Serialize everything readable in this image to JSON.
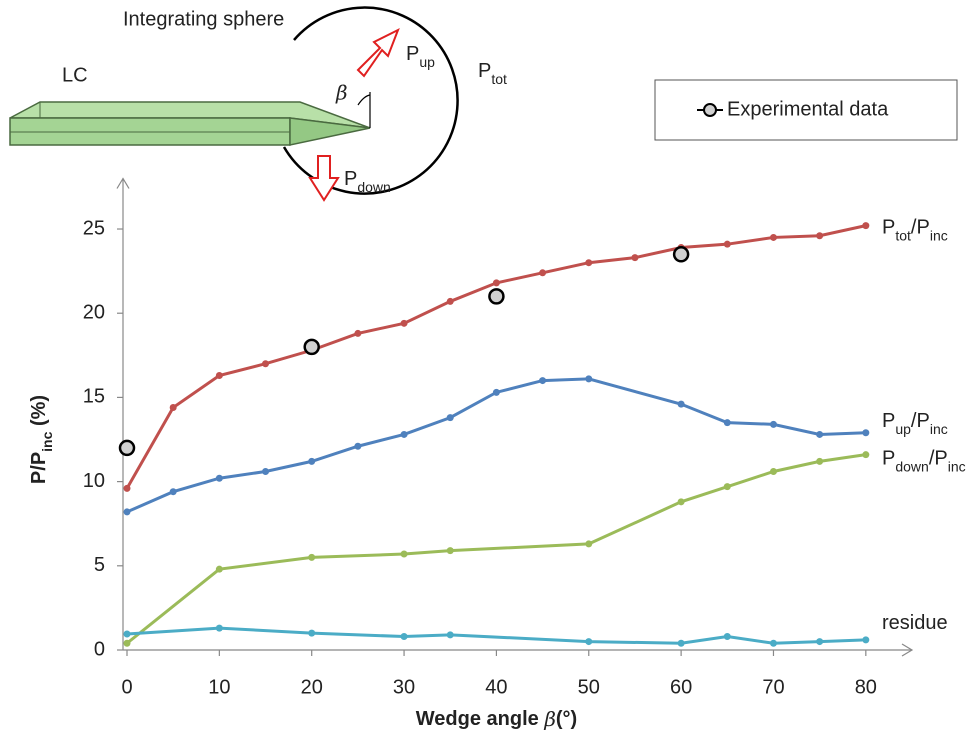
{
  "diagram": {
    "sphere_label": "Integrating sphere",
    "lc_label": "LC",
    "angle_label": "β",
    "up_label": [
      {
        "text": "P"
      },
      {
        "sub": "up"
      }
    ],
    "tot_label": [
      {
        "text": "P"
      },
      {
        "sub": "tot"
      }
    ],
    "down_label": [
      {
        "text": "P"
      },
      {
        "sub": "down"
      }
    ]
  },
  "chart_data": {
    "type": "line",
    "x_label": [
      {
        "text": "Wedge angle "
      },
      {
        "italic": "β"
      },
      {
        "text": "(°)"
      }
    ],
    "y_label": [
      {
        "text": "P/P"
      },
      {
        "sub": "inc"
      },
      {
        "text": " (%)"
      }
    ],
    "xlim": [
      0,
      85
    ],
    "ylim": [
      0,
      28
    ],
    "xticks": [
      0,
      10,
      20,
      30,
      40,
      50,
      60,
      70,
      80
    ],
    "yticks": [
      0,
      5,
      10,
      15,
      20,
      25
    ],
    "series": [
      {
        "name": [
          {
            "text": "P"
          },
          {
            "sub": "tot"
          },
          {
            "text": "/P"
          },
          {
            "sub": "inc"
          }
        ],
        "color": "#c0504d",
        "x": [
          0,
          5,
          10,
          15,
          20,
          25,
          30,
          35,
          40,
          45,
          50,
          55,
          60,
          65,
          70,
          75,
          80
        ],
        "values": [
          9.6,
          14.4,
          16.3,
          17.0,
          17.8,
          18.8,
          19.4,
          20.7,
          21.8,
          22.4,
          23.0,
          23.3,
          23.9,
          24.1,
          24.5,
          24.6,
          25.2
        ]
      },
      {
        "name": [
          {
            "text": "P"
          },
          {
            "sub": "up"
          },
          {
            "text": "/P"
          },
          {
            "sub": "inc"
          }
        ],
        "color": "#4f81bd",
        "x": [
          0,
          5,
          10,
          15,
          20,
          25,
          30,
          35,
          40,
          45,
          50,
          60,
          65,
          70,
          75,
          80
        ],
        "values": [
          8.2,
          9.4,
          10.2,
          10.6,
          11.2,
          12.1,
          12.8,
          13.8,
          15.3,
          16.0,
          16.1,
          14.6,
          13.5,
          13.4,
          12.8,
          12.9
        ]
      },
      {
        "name": [
          {
            "text": "P"
          },
          {
            "sub": "down"
          },
          {
            "text": "/P"
          },
          {
            "sub": "inc"
          }
        ],
        "color": "#9bbb59",
        "x": [
          0,
          10,
          20,
          30,
          35,
          50,
          60,
          65,
          70,
          75,
          80
        ],
        "values": [
          0.4,
          4.8,
          5.5,
          5.7,
          5.9,
          6.3,
          8.8,
          9.7,
          10.6,
          11.2,
          11.6
        ]
      },
      {
        "name": [
          {
            "text": "residue"
          }
        ],
        "color": "#4bacc6",
        "x": [
          0,
          10,
          20,
          30,
          35,
          50,
          60,
          65,
          70,
          75,
          80
        ],
        "values": [
          0.95,
          1.3,
          1.0,
          0.8,
          0.9,
          0.5,
          0.4,
          0.8,
          0.4,
          0.5,
          0.6
        ]
      }
    ],
    "points": {
      "name": "Experimental data",
      "color": "#d0d0d0",
      "x": [
        0,
        20,
        40,
        60
      ],
      "values": [
        12.0,
        18.0,
        21.0,
        23.5
      ]
    }
  }
}
